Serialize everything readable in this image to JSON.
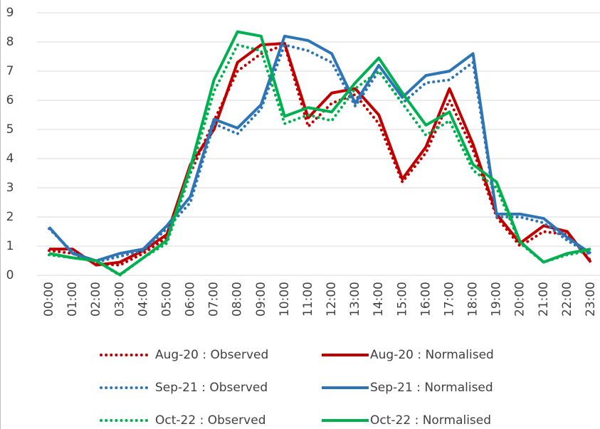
{
  "chart_data": {
    "type": "line",
    "categories": [
      "00:00",
      "01:00",
      "02:00",
      "03:00",
      "04:00",
      "05:00",
      "06:00",
      "07:00",
      "08:00",
      "09:00",
      "10:00",
      "11:00",
      "12:00",
      "13:00",
      "14:00",
      "15:00",
      "16:00",
      "17:00",
      "18:00",
      "19:00",
      "20:00",
      "21:00",
      "22:00",
      "23:00"
    ],
    "series": [
      {
        "name": "Aug-20 : Observed",
        "color": "#c00000",
        "line_style": "dotted",
        "values": [
          0.85,
          0.75,
          0.4,
          0.35,
          0.75,
          1.3,
          3.5,
          5.3,
          7.0,
          7.6,
          7.9,
          5.1,
          5.9,
          6.2,
          5.2,
          3.2,
          4.2,
          6.0,
          4.3,
          2.0,
          1.0,
          1.5,
          1.4,
          0.5
        ]
      },
      {
        "name": "Aug-20 : Normalised",
        "color": "#c00000",
        "line_style": "solid",
        "values": [
          0.9,
          0.9,
          0.35,
          0.45,
          0.85,
          1.4,
          3.8,
          5.0,
          7.3,
          7.9,
          7.95,
          5.4,
          6.25,
          6.4,
          5.5,
          3.3,
          4.4,
          6.4,
          4.5,
          2.1,
          1.1,
          1.7,
          1.5,
          0.45
        ]
      },
      {
        "name": "Sep-21 : Observed",
        "color": "#2e75b6",
        "line_style": "dotted",
        "values": [
          1.6,
          0.8,
          0.45,
          0.65,
          0.85,
          1.6,
          2.5,
          5.2,
          4.85,
          5.7,
          7.9,
          7.7,
          7.3,
          5.8,
          7.0,
          5.9,
          6.6,
          6.7,
          7.3,
          2.0,
          2.0,
          1.8,
          1.2,
          0.7
        ]
      },
      {
        "name": "Sep-21 : Normalised",
        "color": "#2e75b6",
        "line_style": "solid",
        "values": [
          1.65,
          0.75,
          0.5,
          0.75,
          0.9,
          1.7,
          2.7,
          5.35,
          5.05,
          5.85,
          8.2,
          8.05,
          7.6,
          5.9,
          7.2,
          6.1,
          6.85,
          7.0,
          7.6,
          2.1,
          2.1,
          1.95,
          1.3,
          0.75
        ]
      },
      {
        "name": "Oct-22 : Observed",
        "color": "#00b050",
        "line_style": "dotted",
        "values": [
          0.7,
          0.6,
          0.5,
          0.0,
          0.6,
          1.1,
          3.5,
          6.3,
          7.9,
          7.7,
          5.2,
          5.5,
          5.3,
          6.4,
          7.0,
          5.9,
          4.8,
          5.3,
          3.6,
          3.0,
          1.1,
          0.45,
          0.7,
          0.85
        ]
      },
      {
        "name": "Oct-22 : Normalised",
        "color": "#00b050",
        "line_style": "solid",
        "values": [
          0.75,
          0.6,
          0.5,
          0.02,
          0.6,
          1.2,
          3.7,
          6.7,
          8.35,
          8.2,
          5.45,
          5.75,
          5.6,
          6.6,
          7.45,
          6.25,
          5.15,
          5.6,
          3.8,
          3.2,
          1.15,
          0.45,
          0.75,
          0.9
        ]
      }
    ],
    "ylim": [
      0,
      9
    ],
    "yticks": [
      0,
      1,
      2,
      3,
      4,
      5,
      6,
      7,
      8,
      9
    ],
    "grid": true,
    "legend": "bottom"
  }
}
